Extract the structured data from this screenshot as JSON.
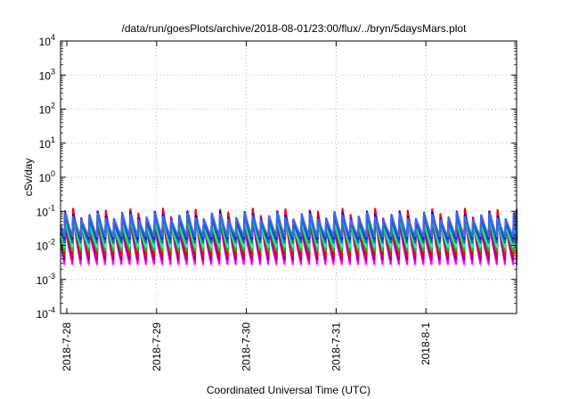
{
  "chart_data": {
    "type": "line",
    "title": "/data/run/goesPlots/archive/2018-08-01/23:00/flux/../bryn/5daysMars.plot",
    "xlabel": "Coordinated Universal Time (UTC)",
    "ylabel": "cSv/day",
    "yscale": "log",
    "ylim": [
      0.0001,
      10000
    ],
    "xlim": [
      "2018-07-28T00:00",
      "2018-08-01T23:00"
    ],
    "grid": true,
    "x_ticks": [
      {
        "label": "2018-7-28",
        "value": 0
      },
      {
        "label": "2018-7-29",
        "value": 1
      },
      {
        "label": "2018-7-30",
        "value": 2
      },
      {
        "label": "2018-7-31",
        "value": 3
      },
      {
        "label": "2018-8-1",
        "value": 4
      }
    ],
    "y_ticks": [
      {
        "base": "10",
        "exp": "-4",
        "value": 0.0001
      },
      {
        "base": "10",
        "exp": "-3",
        "value": 0.001
      },
      {
        "base": "10",
        "exp": "-2",
        "value": 0.01
      },
      {
        "base": "10",
        "exp": "-1",
        "value": 0.1
      },
      {
        "base": "10",
        "exp": "0",
        "value": 1
      },
      {
        "base": "10",
        "exp": "1",
        "value": 10
      },
      {
        "base": "10",
        "exp": "2",
        "value": 100
      },
      {
        "base": "10",
        "exp": "3",
        "value": 1000
      },
      {
        "base": "10",
        "exp": "4",
        "value": 10000
      }
    ],
    "pulse_period_days": 0.0909,
    "series": [
      {
        "color": "#ff00ff",
        "peak": 0.07,
        "trough": 0.0028
      },
      {
        "color": "#8b008b",
        "peak": 0.075,
        "trough": 0.0038
      },
      {
        "color": "#ff0000",
        "peak": 0.12,
        "trough": 0.005
      },
      {
        "color": "#00cc00",
        "peak": 0.065,
        "trough": 0.007
      },
      {
        "color": "#40e0d0",
        "peak": 0.075,
        "trough": 0.009
      },
      {
        "color": "#008080",
        "peak": 0.085,
        "trough": 0.012
      },
      {
        "color": "#0000ff",
        "peak": 0.1,
        "trough": 0.016
      },
      {
        "color": "#4169e1",
        "peak": 0.09,
        "trough": 0.018
      }
    ]
  }
}
